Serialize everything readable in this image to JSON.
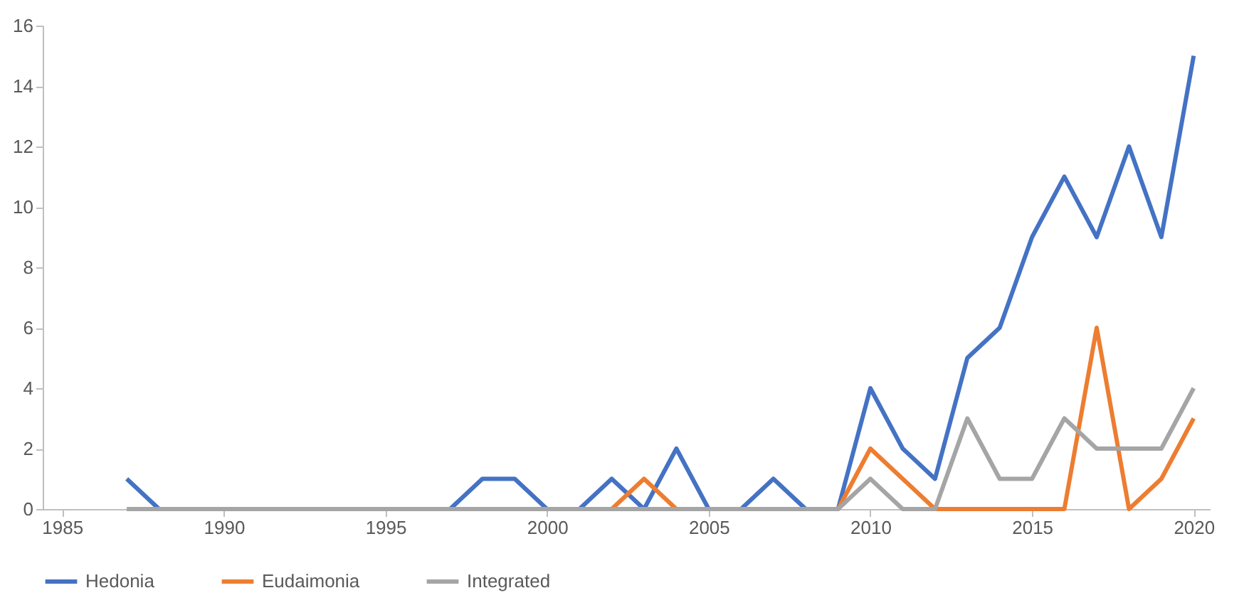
{
  "chart_data": {
    "type": "line",
    "x": [
      1987,
      1988,
      1989,
      1990,
      1991,
      1992,
      1993,
      1994,
      1995,
      1996,
      1997,
      1998,
      1999,
      2000,
      2001,
      2002,
      2003,
      2004,
      2005,
      2006,
      2007,
      2008,
      2009,
      2010,
      2011,
      2012,
      2013,
      2014,
      2015,
      2016,
      2017,
      2018,
      2019,
      2020
    ],
    "series": [
      {
        "name": "Hedonia",
        "color": "#4472c4",
        "values": [
          1,
          0,
          0,
          0,
          0,
          0,
          0,
          0,
          0,
          0,
          0,
          1,
          1,
          0,
          0,
          1,
          0,
          2,
          0,
          0,
          1,
          0,
          0,
          4,
          2,
          1,
          5,
          6,
          9,
          11,
          9,
          12,
          9,
          15
        ]
      },
      {
        "name": "Eudaimonia",
        "color": "#ed7d31",
        "values": [
          null,
          null,
          null,
          null,
          null,
          null,
          null,
          null,
          null,
          null,
          null,
          null,
          null,
          null,
          null,
          0,
          1,
          0,
          null,
          null,
          null,
          null,
          0,
          2,
          1,
          0,
          0,
          0,
          0,
          0,
          6,
          0,
          1,
          3
        ]
      },
      {
        "name": "Integrated",
        "color": "#a5a5a5",
        "values": [
          0,
          0,
          0,
          0,
          0,
          0,
          0,
          0,
          0,
          0,
          0,
          0,
          0,
          0,
          0,
          0,
          0,
          0,
          0,
          0,
          0,
          0,
          0,
          1,
          0,
          0,
          3,
          1,
          1,
          3,
          2,
          2,
          2,
          4
        ]
      }
    ],
    "xlim": [
      1984.4,
      2020.5
    ],
    "xticks": [
      1985,
      1990,
      1995,
      2000,
      2005,
      2010,
      2015,
      2020
    ],
    "ylim": [
      0,
      16
    ],
    "yticks": [
      0,
      2,
      4,
      6,
      8,
      10,
      12,
      14,
      16
    ],
    "grid": false,
    "legend": "bottom",
    "marker": "none",
    "line_style": "solid"
  }
}
